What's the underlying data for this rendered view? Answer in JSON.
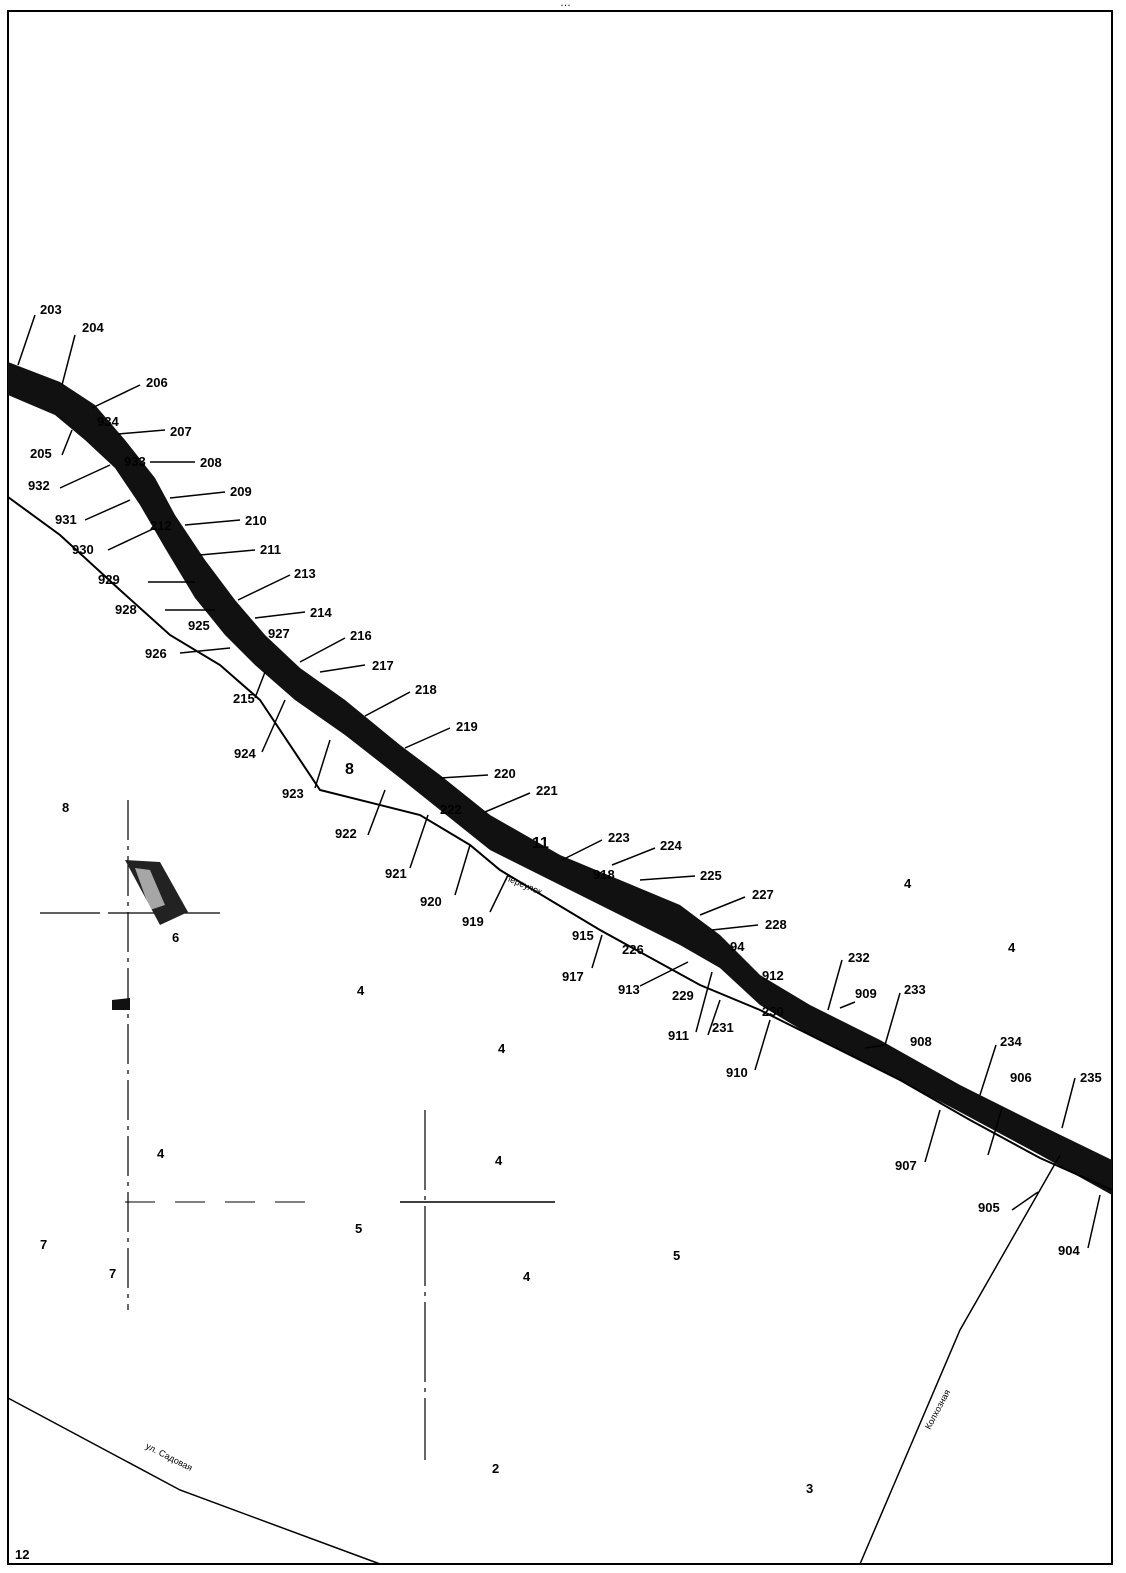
{
  "caption": "…",
  "map": {
    "point_labels": [
      "203",
      "204",
      "205",
      "206",
      "207",
      "208",
      "209",
      "210",
      "211",
      "212",
      "213",
      "214",
      "215",
      "216",
      "217",
      "218",
      "219",
      "220",
      "221",
      "222",
      "223",
      "224",
      "225",
      "226",
      "227",
      "228",
      "229",
      "230",
      "231",
      "232",
      "233",
      "234",
      "235",
      "904",
      "905",
      "906",
      "907",
      "908",
      "909",
      "910",
      "911",
      "912",
      "913",
      "915",
      "917",
      "918",
      "919",
      "920",
      "921",
      "922",
      "923",
      "924",
      "925",
      "926",
      "927",
      "928",
      "929",
      "930",
      "931",
      "932",
      "933",
      "934",
      "94"
    ],
    "plot_numbers": [
      "8",
      "6",
      "4",
      "4",
      "4",
      "4",
      "4",
      "4",
      "4",
      "7",
      "7",
      "5",
      "5",
      "2",
      "3",
      "12",
      "8",
      "11",
      "26"
    ],
    "street_labels": [
      "Колхозная",
      "ул. Садовая",
      "переулок"
    ]
  }
}
